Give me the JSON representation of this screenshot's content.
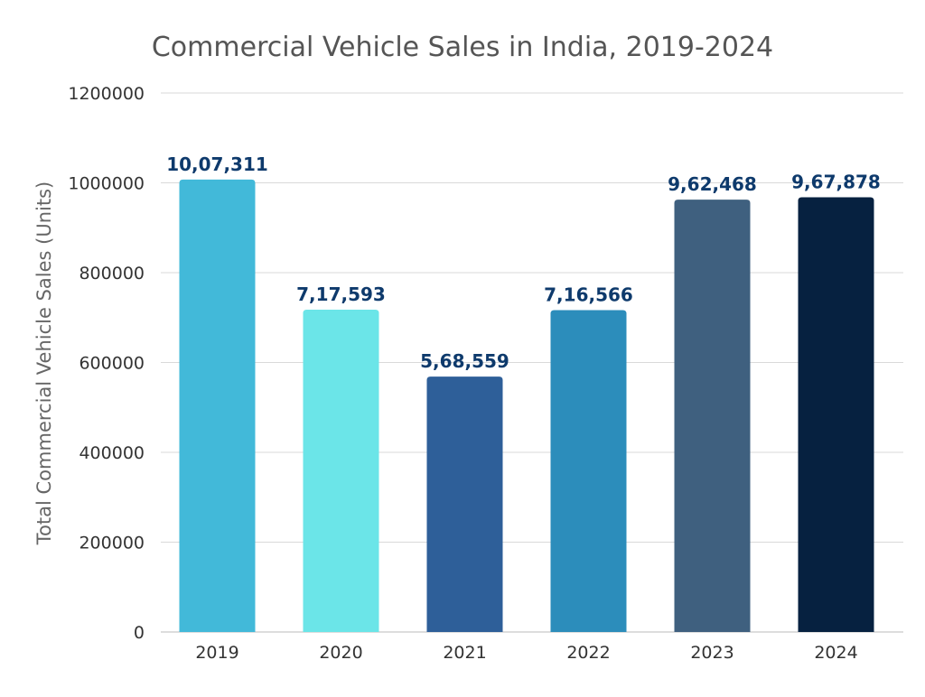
{
  "chart_data": {
    "type": "bar",
    "title": "Commercial Vehicle Sales in India, 2019-2024",
    "xlabel": "",
    "ylabel": "Total Commercial Vehicle Sales (Units)",
    "categories": [
      "2019",
      "2020",
      "2021",
      "2022",
      "2023",
      "2024"
    ],
    "values": [
      1007311,
      717593,
      568559,
      716566,
      962468,
      967878
    ],
    "data_labels": [
      "10,07,311",
      "7,17,593",
      "5,68,559",
      "7,16,566",
      "9,62,468",
      "9,67,878"
    ],
    "colors": [
      "#42b9d9",
      "#6be5e8",
      "#2e5f99",
      "#2c8dbb",
      "#3f607f",
      "#062140"
    ],
    "label_color": "#0e3a6c",
    "ylim": [
      0,
      1200000
    ],
    "yticks": [
      0,
      200000,
      400000,
      600000,
      800000,
      1000000,
      1200000
    ],
    "ytick_labels": [
      "0",
      "200000",
      "400000",
      "600000",
      "800000",
      "1000000",
      "1200000"
    ],
    "grid": true,
    "legend": "none"
  }
}
